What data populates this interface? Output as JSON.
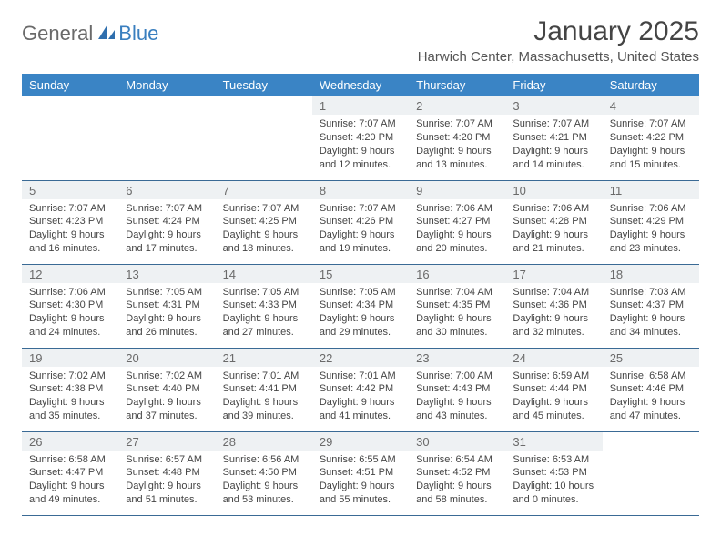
{
  "brand": {
    "part1": "General",
    "part2": "Blue"
  },
  "title": "January 2025",
  "subtitle": "Harwich Center, Massachusetts, United States",
  "colors": {
    "header_bg": "#3a84c5",
    "header_text": "#ffffff",
    "daynum_bg": "#eef1f3",
    "row_border": "#3a6a95",
    "logo_gray": "#6a6a6a",
    "logo_blue": "#3a7fbf"
  },
  "day_headers": [
    "Sunday",
    "Monday",
    "Tuesday",
    "Wednesday",
    "Thursday",
    "Friday",
    "Saturday"
  ],
  "weeks": [
    [
      null,
      null,
      null,
      {
        "n": "1",
        "sr": "7:07 AM",
        "ss": "4:20 PM",
        "dl": "9 hours and 12 minutes."
      },
      {
        "n": "2",
        "sr": "7:07 AM",
        "ss": "4:20 PM",
        "dl": "9 hours and 13 minutes."
      },
      {
        "n": "3",
        "sr": "7:07 AM",
        "ss": "4:21 PM",
        "dl": "9 hours and 14 minutes."
      },
      {
        "n": "4",
        "sr": "7:07 AM",
        "ss": "4:22 PM",
        "dl": "9 hours and 15 minutes."
      }
    ],
    [
      {
        "n": "5",
        "sr": "7:07 AM",
        "ss": "4:23 PM",
        "dl": "9 hours and 16 minutes."
      },
      {
        "n": "6",
        "sr": "7:07 AM",
        "ss": "4:24 PM",
        "dl": "9 hours and 17 minutes."
      },
      {
        "n": "7",
        "sr": "7:07 AM",
        "ss": "4:25 PM",
        "dl": "9 hours and 18 minutes."
      },
      {
        "n": "8",
        "sr": "7:07 AM",
        "ss": "4:26 PM",
        "dl": "9 hours and 19 minutes."
      },
      {
        "n": "9",
        "sr": "7:06 AM",
        "ss": "4:27 PM",
        "dl": "9 hours and 20 minutes."
      },
      {
        "n": "10",
        "sr": "7:06 AM",
        "ss": "4:28 PM",
        "dl": "9 hours and 21 minutes."
      },
      {
        "n": "11",
        "sr": "7:06 AM",
        "ss": "4:29 PM",
        "dl": "9 hours and 23 minutes."
      }
    ],
    [
      {
        "n": "12",
        "sr": "7:06 AM",
        "ss": "4:30 PM",
        "dl": "9 hours and 24 minutes."
      },
      {
        "n": "13",
        "sr": "7:05 AM",
        "ss": "4:31 PM",
        "dl": "9 hours and 26 minutes."
      },
      {
        "n": "14",
        "sr": "7:05 AM",
        "ss": "4:33 PM",
        "dl": "9 hours and 27 minutes."
      },
      {
        "n": "15",
        "sr": "7:05 AM",
        "ss": "4:34 PM",
        "dl": "9 hours and 29 minutes."
      },
      {
        "n": "16",
        "sr": "7:04 AM",
        "ss": "4:35 PM",
        "dl": "9 hours and 30 minutes."
      },
      {
        "n": "17",
        "sr": "7:04 AM",
        "ss": "4:36 PM",
        "dl": "9 hours and 32 minutes."
      },
      {
        "n": "18",
        "sr": "7:03 AM",
        "ss": "4:37 PM",
        "dl": "9 hours and 34 minutes."
      }
    ],
    [
      {
        "n": "19",
        "sr": "7:02 AM",
        "ss": "4:38 PM",
        "dl": "9 hours and 35 minutes."
      },
      {
        "n": "20",
        "sr": "7:02 AM",
        "ss": "4:40 PM",
        "dl": "9 hours and 37 minutes."
      },
      {
        "n": "21",
        "sr": "7:01 AM",
        "ss": "4:41 PM",
        "dl": "9 hours and 39 minutes."
      },
      {
        "n": "22",
        "sr": "7:01 AM",
        "ss": "4:42 PM",
        "dl": "9 hours and 41 minutes."
      },
      {
        "n": "23",
        "sr": "7:00 AM",
        "ss": "4:43 PM",
        "dl": "9 hours and 43 minutes."
      },
      {
        "n": "24",
        "sr": "6:59 AM",
        "ss": "4:44 PM",
        "dl": "9 hours and 45 minutes."
      },
      {
        "n": "25",
        "sr": "6:58 AM",
        "ss": "4:46 PM",
        "dl": "9 hours and 47 minutes."
      }
    ],
    [
      {
        "n": "26",
        "sr": "6:58 AM",
        "ss": "4:47 PM",
        "dl": "9 hours and 49 minutes."
      },
      {
        "n": "27",
        "sr": "6:57 AM",
        "ss": "4:48 PM",
        "dl": "9 hours and 51 minutes."
      },
      {
        "n": "28",
        "sr": "6:56 AM",
        "ss": "4:50 PM",
        "dl": "9 hours and 53 minutes."
      },
      {
        "n": "29",
        "sr": "6:55 AM",
        "ss": "4:51 PM",
        "dl": "9 hours and 55 minutes."
      },
      {
        "n": "30",
        "sr": "6:54 AM",
        "ss": "4:52 PM",
        "dl": "9 hours and 58 minutes."
      },
      {
        "n": "31",
        "sr": "6:53 AM",
        "ss": "4:53 PM",
        "dl": "10 hours and 0 minutes."
      },
      null
    ]
  ],
  "labels": {
    "sunrise": "Sunrise:",
    "sunset": "Sunset:",
    "daylight": "Daylight:"
  }
}
